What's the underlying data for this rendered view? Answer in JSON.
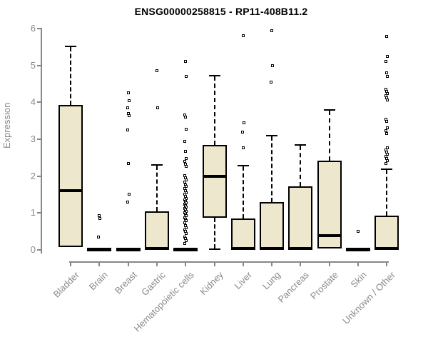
{
  "chart_data": {
    "type": "boxplot",
    "title": "ENSG00000258815 - RP11-408B11.2",
    "xlabel": "",
    "ylabel": "Expression",
    "ylim": [
      0,
      6
    ],
    "yticks": [
      0,
      1,
      2,
      3,
      4,
      5,
      6
    ],
    "grid": false,
    "legend": "none",
    "categories": [
      "Bladder",
      "Brain",
      "Breast",
      "Gastric",
      "Hematopoietic cells",
      "Kidney",
      "Liver",
      "Lung",
      "Pancreas",
      "Prostate",
      "Skin",
      "Unknown / Other"
    ],
    "series": [
      {
        "name": "Bladder",
        "whisker_low": 0.07,
        "q1": 0.07,
        "median": 1.6,
        "q3": 3.92,
        "whisker_high": 5.52,
        "outliers": []
      },
      {
        "name": "Brain",
        "whisker_low": 0,
        "q1": 0,
        "median": 0.02,
        "q3": 0.04,
        "whisker_high": 0.04,
        "outliers": [
          0.92,
          0.86,
          0.35
        ]
      },
      {
        "name": "Breast",
        "whisker_low": 0,
        "q1": 0,
        "median": 0.02,
        "q3": 0.04,
        "whisker_high": 0.04,
        "outliers": [
          4.25,
          4.05,
          3.85,
          3.7,
          3.63,
          3.25,
          2.35,
          1.5,
          1.3
        ]
      },
      {
        "name": "Gastric",
        "whisker_low": 0,
        "q1": 0,
        "median": 0.04,
        "q3": 1.05,
        "whisker_high": 2.3,
        "outliers": [
          4.85,
          3.85
        ]
      },
      {
        "name": "Hematopoietic cells",
        "whisker_low": 0,
        "q1": 0,
        "median": 0.02,
        "q3": 0.04,
        "whisker_high": 0.04,
        "outliers": [
          5.1,
          4.7,
          3.66,
          3.6,
          3.27,
          2.95,
          2.67,
          2.48,
          2.4,
          2.33,
          2.27,
          2.02,
          1.96,
          1.9,
          1.83,
          1.77,
          1.72,
          1.66,
          1.6,
          1.55,
          1.5,
          1.45,
          1.4,
          1.36,
          1.32,
          1.28,
          1.24,
          1.2,
          1.16,
          1.12,
          1.08,
          1.04,
          1.0,
          0.96,
          0.92,
          0.88,
          0.84,
          0.8,
          0.73,
          0.66,
          0.6,
          0.55,
          0.5,
          0.45,
          0.35,
          0.3,
          0.25,
          0.18
        ]
      },
      {
        "name": "Kidney",
        "whisker_low": 0.02,
        "q1": 0.88,
        "median": 2.0,
        "q3": 2.85,
        "whisker_high": 4.73,
        "outliers": []
      },
      {
        "name": "Liver",
        "whisker_low": 0,
        "q1": 0,
        "median": 0.04,
        "q3": 0.85,
        "whisker_high": 2.28,
        "outliers": [
          5.8,
          3.45,
          3.2,
          2.77
        ]
      },
      {
        "name": "Lung",
        "whisker_low": 0,
        "q1": 0,
        "median": 0.04,
        "q3": 1.3,
        "whisker_high": 3.1,
        "outliers": [
          5.95,
          5.0,
          4.55
        ]
      },
      {
        "name": "Pancreas",
        "whisker_low": 0,
        "q1": 0,
        "median": 0.04,
        "q3": 1.72,
        "whisker_high": 2.85,
        "outliers": []
      },
      {
        "name": "Prostate",
        "whisker_low": 0.03,
        "q1": 0.03,
        "median": 0.38,
        "q3": 2.42,
        "whisker_high": 3.8,
        "outliers": []
      },
      {
        "name": "Skin",
        "whisker_low": 0,
        "q1": 0,
        "median": 0.02,
        "q3": 0.04,
        "whisker_high": 0.04,
        "outliers": [
          0.5
        ]
      },
      {
        "name": "Unknown / Other",
        "whisker_low": 0,
        "q1": 0,
        "median": 0.04,
        "q3": 0.92,
        "whisker_high": 2.18,
        "outliers": [
          5.78,
          5.25,
          5.1,
          4.8,
          4.7,
          4.36,
          4.3,
          4.24,
          4.18,
          4.12,
          4.06,
          3.55,
          3.48,
          3.3,
          3.23,
          3.16,
          2.77,
          2.71,
          2.65,
          2.59,
          2.53,
          2.47,
          2.41,
          2.35
        ]
      }
    ]
  },
  "colors": {
    "background": "#ffffff",
    "box_fill": "#EDE7CE",
    "box_border": "#000000",
    "median": "#000000",
    "outlier": "#000000",
    "axis": "#878787",
    "tick_label": "#8a8a8a",
    "title": "#000000"
  }
}
